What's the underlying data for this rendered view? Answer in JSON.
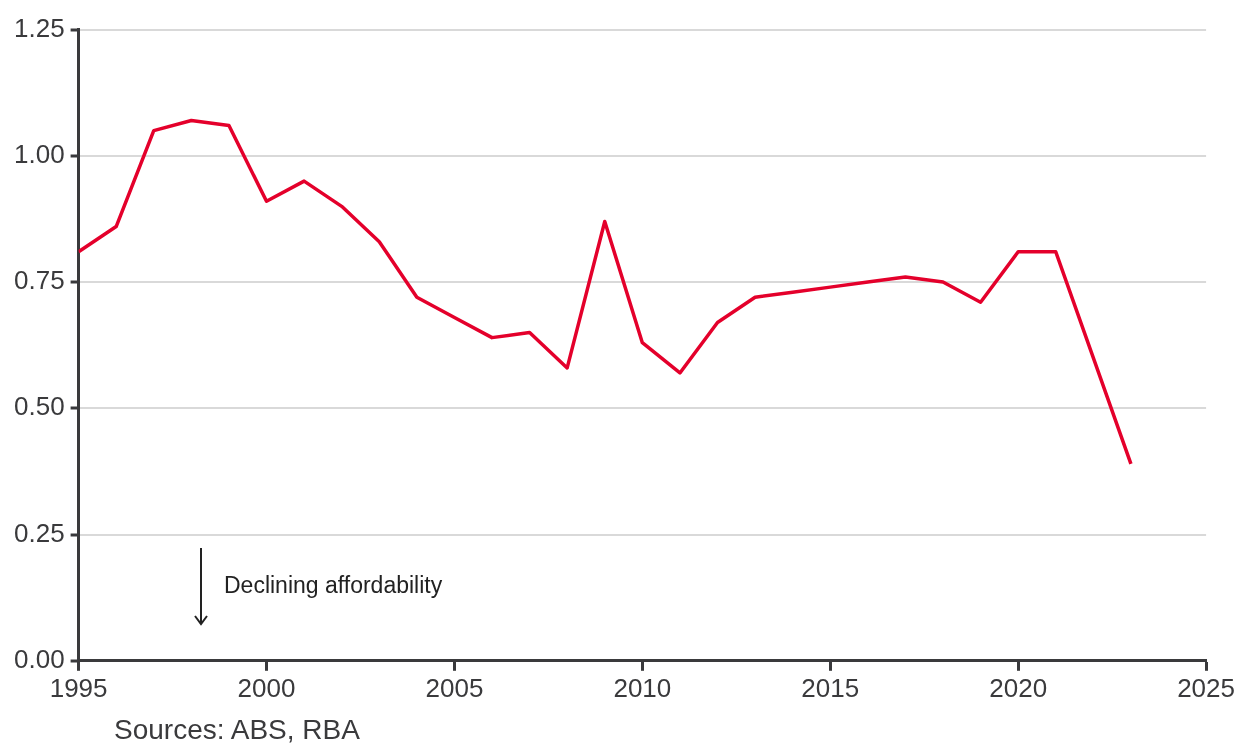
{
  "chart_data": {
    "type": "line",
    "x": [
      1995,
      1996,
      1997,
      1998,
      1999,
      2000,
      2001,
      2002,
      2003,
      2004,
      2005,
      2006,
      2007,
      2008,
      2009,
      2010,
      2011,
      2012,
      2013,
      2014,
      2015,
      2016,
      2017,
      2018,
      2019,
      2020,
      2021,
      2023
    ],
    "series": [
      {
        "color": "#e4002b",
        "values": [
          0.81,
          0.86,
          1.05,
          1.07,
          1.06,
          0.91,
          0.95,
          0.9,
          0.83,
          0.72,
          0.68,
          0.64,
          0.65,
          0.58,
          0.87,
          0.63,
          0.57,
          0.67,
          0.72,
          0.73,
          0.74,
          0.75,
          0.76,
          0.75,
          0.71,
          0.81,
          0.81,
          0.39
        ]
      }
    ],
    "xlim": [
      1995,
      2025
    ],
    "xticks": [
      1995,
      2000,
      2005,
      2010,
      2015,
      2020,
      2025
    ],
    "ylim": [
      0,
      1.25
    ],
    "yticks": [
      {
        "value": 0,
        "label": "0.00"
      },
      {
        "value": 0.25,
        "label": "0.25"
      },
      {
        "value": 0.5,
        "label": "0.50"
      },
      {
        "value": 0.75,
        "label": "0.75"
      },
      {
        "value": 1,
        "label": "1.00"
      },
      {
        "value": 1.25,
        "label": "1.25"
      }
    ],
    "grid": "y",
    "legend": false,
    "marker": "none",
    "line_style": "solid",
    "annotations": [
      "Declining affordability",
      "Sources: ABS, RBA"
    ]
  }
}
